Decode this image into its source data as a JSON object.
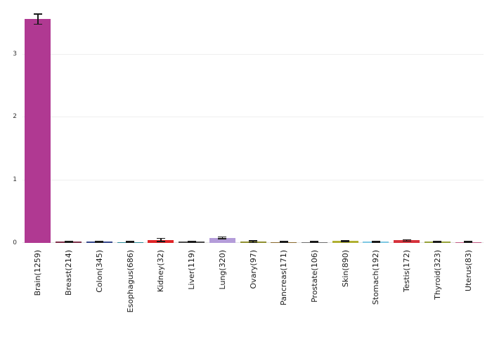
{
  "chart_data": {
    "type": "bar",
    "title": "",
    "xlabel": "",
    "ylabel": "",
    "categories": [
      "Brain(1259)",
      "Breast(214)",
      "Colon(345)",
      "Esophagus(686)",
      "Kidney(32)",
      "Liver(119)",
      "Lung(320)",
      "Ovary(97)",
      "Pancreas(171)",
      "Prostate(106)",
      "Skin(890)",
      "Stomach(192)",
      "Testis(172)",
      "Thyroid(323)",
      "Uterus(83)"
    ],
    "values": [
      3.55,
      0.02,
      0.02,
      0.015,
      0.05,
      0.02,
      0.08,
      0.02,
      0.015,
      0.015,
      0.03,
      0.02,
      0.04,
      0.02,
      0.015
    ],
    "errors": [
      0.08,
      0.01,
      0.008,
      0.006,
      0.025,
      0.01,
      0.015,
      0.012,
      0.008,
      0.01,
      0.008,
      0.008,
      0.012,
      0.008,
      0.01
    ],
    "bar_colors": [
      "#b03992",
      "#7e3049",
      "#35478c",
      "#2e8b9a",
      "#e02427",
      "#4a4a4a",
      "#b49cd9",
      "#8f8f2f",
      "#8a6a2f",
      "#6f6f6f",
      "#b0b032",
      "#7ec8e3",
      "#d6323c",
      "#97a23a",
      "#c25a84"
    ],
    "error_bar_color": "#1a1a1a",
    "yticks": [
      0,
      1,
      2,
      3
    ],
    "ylim": [
      0,
      3.72
    ],
    "grid": "horizontal-light",
    "legend": "none",
    "x_label_rotation": -90
  }
}
